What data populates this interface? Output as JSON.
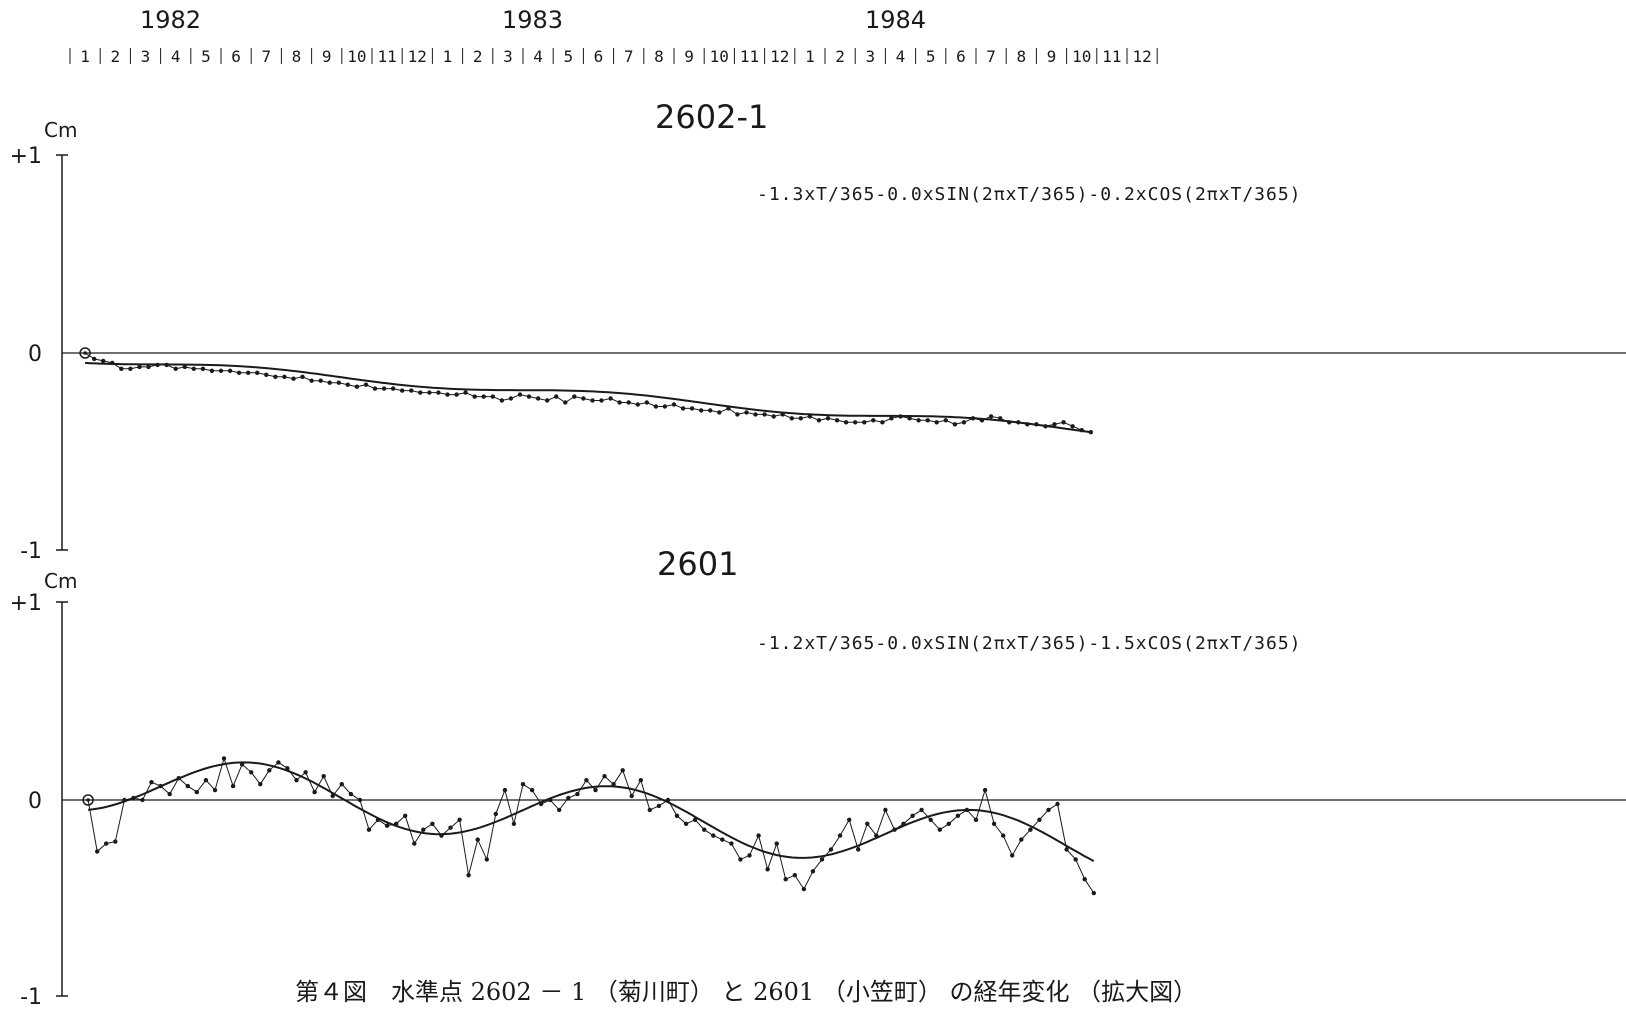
{
  "years": [
    "1982",
    "1983",
    "1984"
  ],
  "months_per_year": [
    "1",
    "2",
    "3",
    "4",
    "5",
    "6",
    "7",
    "8",
    "9",
    "10",
    "11",
    "12"
  ],
  "caption": "第４図　水準点 2602 － 1 （菊川町） と 2601 （小笠町） の経年変化 （拡大図）",
  "chart_data": [
    {
      "type": "line",
      "title": "2602-1",
      "formula": "-1.3xT/365-0.0xSIN(2πxT/365)-0.2xCOS(2πxT/365)",
      "ylabel": "Cm",
      "ylim": [
        -1,
        1
      ],
      "y_ticks": [
        "+1",
        "0",
        "-1"
      ],
      "x_unit": "month index (0 = Jan 1982)",
      "xlim": [
        0,
        36
      ],
      "fit": {
        "trend": -1.3,
        "sin": -0.0,
        "cos": -0.2,
        "offset": 0.1
      },
      "series": [
        {
          "role": "observed",
          "x": [
            0.5,
            0.8,
            1.1,
            1.4,
            1.7,
            2.0,
            2.3,
            2.6,
            2.9,
            3.2,
            3.5,
            3.8,
            4.1,
            4.4,
            4.7,
            5.0,
            5.3,
            5.6,
            5.9,
            6.2,
            6.5,
            6.8,
            7.1,
            7.4,
            7.7,
            8.0,
            8.3,
            8.6,
            8.9,
            9.2,
            9.5,
            9.8,
            10.1,
            10.4,
            10.7,
            11.0,
            11.3,
            11.6,
            11.9,
            12.2,
            12.5,
            12.8,
            13.1,
            13.4,
            13.7,
            14.0,
            14.3,
            14.6,
            14.9,
            15.2,
            15.5,
            15.8,
            16.1,
            16.4,
            16.7,
            17.0,
            17.3,
            17.6,
            17.9,
            18.2,
            18.5,
            18.8,
            19.1,
            19.4,
            19.7,
            20.0,
            20.3,
            20.6,
            20.9,
            21.2,
            21.5,
            21.8,
            22.1,
            22.4,
            22.7,
            23.0,
            23.3,
            23.6,
            23.9,
            24.2,
            24.5,
            24.8,
            25.1,
            25.4,
            25.7,
            26.0,
            26.3,
            26.6,
            26.9,
            27.2,
            27.5,
            27.8,
            28.1,
            28.4,
            28.7,
            29.0,
            29.3,
            29.6,
            29.9,
            30.2,
            30.5,
            30.8,
            31.1,
            31.4,
            31.7,
            32.0,
            32.3,
            32.6,
            32.9,
            33.2,
            33.5,
            33.8
          ],
          "y": [
            0.0,
            -0.03,
            -0.04,
            -0.05,
            -0.08,
            -0.08,
            -0.07,
            -0.07,
            -0.06,
            -0.06,
            -0.08,
            -0.07,
            -0.08,
            -0.08,
            -0.09,
            -0.09,
            -0.09,
            -0.1,
            -0.1,
            -0.1,
            -0.11,
            -0.12,
            -0.12,
            -0.13,
            -0.12,
            -0.14,
            -0.14,
            -0.15,
            -0.15,
            -0.16,
            -0.17,
            -0.16,
            -0.18,
            -0.18,
            -0.18,
            -0.19,
            -0.19,
            -0.2,
            -0.2,
            -0.2,
            -0.21,
            -0.21,
            -0.2,
            -0.22,
            -0.22,
            -0.22,
            -0.24,
            -0.23,
            -0.21,
            -0.22,
            -0.23,
            -0.24,
            -0.22,
            -0.25,
            -0.22,
            -0.23,
            -0.24,
            -0.24,
            -0.23,
            -0.25,
            -0.25,
            -0.26,
            -0.25,
            -0.27,
            -0.27,
            -0.26,
            -0.28,
            -0.28,
            -0.29,
            -0.29,
            -0.3,
            -0.28,
            -0.31,
            -0.3,
            -0.31,
            -0.31,
            -0.32,
            -0.31,
            -0.33,
            -0.33,
            -0.32,
            -0.34,
            -0.33,
            -0.34,
            -0.35,
            -0.35,
            -0.35,
            -0.34,
            -0.35,
            -0.33,
            -0.32,
            -0.33,
            -0.34,
            -0.34,
            -0.35,
            -0.34,
            -0.36,
            -0.35,
            -0.33,
            -0.34,
            -0.32,
            -0.33,
            -0.35,
            -0.35,
            -0.36,
            -0.36,
            -0.37,
            -0.36,
            -0.35,
            -0.37,
            -0.39,
            -0.4
          ]
        }
      ]
    },
    {
      "type": "line",
      "title": "2601",
      "formula": "-1.2xT/365-0.0xSIN(2πxT/365)-1.5xCOS(2πxT/365)",
      "ylabel": "Cm",
      "ylim": [
        -1,
        1
      ],
      "y_ticks": [
        "+1",
        "0",
        "-1"
      ],
      "x_unit": "month index (0 = Jan 1982)",
      "xlim": [
        0,
        36
      ],
      "fit": {
        "trend": -1.2,
        "sin": -0.0,
        "cos": -1.5,
        "offset": 0.1
      },
      "series": [
        {
          "role": "observed",
          "x": [
            0.6,
            0.9,
            1.2,
            1.5,
            1.8,
            2.1,
            2.4,
            2.7,
            3.0,
            3.3,
            3.6,
            3.9,
            4.2,
            4.5,
            4.8,
            5.1,
            5.4,
            5.7,
            6.0,
            6.3,
            6.6,
            6.9,
            7.2,
            7.5,
            7.8,
            8.1,
            8.4,
            8.7,
            9.0,
            9.3,
            9.6,
            9.9,
            10.2,
            10.5,
            10.8,
            11.1,
            11.4,
            11.7,
            12.0,
            12.3,
            12.6,
            12.9,
            13.2,
            13.5,
            13.8,
            14.1,
            14.4,
            14.7,
            15.0,
            15.3,
            15.6,
            15.9,
            16.2,
            16.5,
            16.8,
            17.1,
            17.4,
            17.7,
            18.0,
            18.3,
            18.6,
            18.9,
            19.2,
            19.5,
            19.8,
            20.1,
            20.4,
            20.7,
            21.0,
            21.3,
            21.6,
            21.9,
            22.2,
            22.5,
            22.8,
            23.1,
            23.4,
            23.7,
            24.0,
            24.3,
            24.6,
            24.9,
            25.2,
            25.5,
            25.8,
            26.1,
            26.4,
            26.7,
            27.0,
            27.3,
            27.6,
            27.9,
            28.2,
            28.5,
            28.8,
            29.1,
            29.4,
            29.7,
            30.0,
            30.3,
            30.6,
            30.9,
            31.2,
            31.5,
            31.8,
            32.1,
            32.4,
            32.7,
            33.0,
            33.3,
            33.6,
            33.9
          ],
          "y": [
            0.0,
            -0.26,
            -0.22,
            -0.21,
            0.0,
            0.01,
            0.0,
            0.09,
            0.07,
            0.03,
            0.11,
            0.07,
            0.04,
            0.1,
            0.05,
            0.21,
            0.07,
            0.18,
            0.14,
            0.08,
            0.15,
            0.19,
            0.16,
            0.1,
            0.14,
            0.04,
            0.12,
            0.02,
            0.08,
            0.03,
            0.0,
            -0.15,
            -0.1,
            -0.13,
            -0.12,
            -0.08,
            -0.22,
            -0.15,
            -0.12,
            -0.18,
            -0.14,
            -0.1,
            -0.38,
            -0.2,
            -0.3,
            -0.07,
            0.05,
            -0.12,
            0.08,
            0.05,
            -0.02,
            0.0,
            -0.05,
            0.01,
            0.03,
            0.1,
            0.05,
            0.12,
            0.08,
            0.15,
            0.02,
            0.1,
            -0.05,
            -0.03,
            0.0,
            -0.08,
            -0.12,
            -0.1,
            -0.15,
            -0.18,
            -0.2,
            -0.22,
            -0.3,
            -0.28,
            -0.18,
            -0.35,
            -0.22,
            -0.4,
            -0.38,
            -0.45,
            -0.36,
            -0.3,
            -0.25,
            -0.18,
            -0.1,
            -0.25,
            -0.12,
            -0.18,
            -0.05,
            -0.15,
            -0.12,
            -0.08,
            -0.05,
            -0.1,
            -0.15,
            -0.12,
            -0.08,
            -0.05,
            -0.1,
            0.05,
            -0.12,
            -0.18,
            -0.28,
            -0.2,
            -0.15,
            -0.1,
            -0.05,
            -0.02,
            -0.25,
            -0.3,
            -0.4,
            -0.47
          ]
        }
      ]
    }
  ]
}
